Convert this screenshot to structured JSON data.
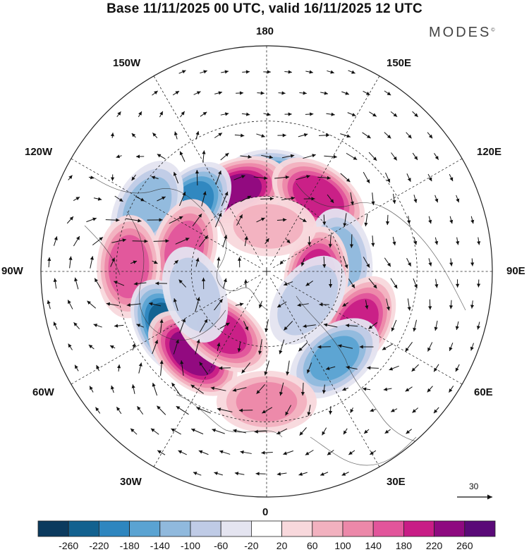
{
  "title": "Base 11/11/2025 00 UTC, valid 16/11/2025 12 UTC",
  "brand": {
    "name": "MODES",
    "mark": "©"
  },
  "longitude_labels": {
    "top": "180",
    "bottom": "0",
    "left": "90W",
    "right": "90E",
    "upper_left_1": "150W",
    "upper_left_2": "120W",
    "upper_right_1": "150E",
    "upper_right_2": "120E",
    "lower_left_1": "60W",
    "lower_left_2": "30W",
    "lower_right_1": "60E",
    "lower_right_2": "30E"
  },
  "reference_vector": {
    "label": "30"
  },
  "colorbar": {
    "colors": [
      "#0b3a5e",
      "#12618f",
      "#2e86bf",
      "#5aa3d2",
      "#90b9dd",
      "#bfcbe6",
      "#e4e4f0",
      "#ffffff",
      "#f8d8dc",
      "#f2b1bf",
      "#ec88a9",
      "#e2559b",
      "#c81d86",
      "#8e0a80",
      "#5a0a78"
    ],
    "labels": [
      "-260",
      "-220",
      "-180",
      "-140",
      "-100",
      "-60",
      "-20",
      "20",
      "60",
      "100",
      "140",
      "180",
      "220",
      "260"
    ]
  },
  "anomalies": [
    {
      "lon": 175,
      "colat": 36,
      "v": -190
    },
    {
      "lon": -160,
      "colat": 34,
      "v": 230
    },
    {
      "lon": 145,
      "colat": 36,
      "v": 210
    },
    {
      "lon": -130,
      "colat": 40,
      "v": -220
    },
    {
      "lon": -118,
      "colat": 54,
      "v": -130
    },
    {
      "lon": -105,
      "colat": 34,
      "v": 160
    },
    {
      "lon": -92,
      "colat": 55,
      "v": 180
    },
    {
      "lon": -60,
      "colat": 45,
      "v": -250
    },
    {
      "lon": -42,
      "colat": 44,
      "v": 250
    },
    {
      "lon": -36,
      "colat": 30,
      "v": 200
    },
    {
      "lon": 100,
      "colat": 30,
      "v": -120
    },
    {
      "lon": 82,
      "colat": 20,
      "v": 220
    },
    {
      "lon": 60,
      "colat": 42,
      "v": 200
    },
    {
      "lon": 38,
      "colat": 44,
      "v": -150
    },
    {
      "lon": 0,
      "colat": 52,
      "v": 110
    },
    {
      "lon": 55,
      "colat": 20,
      "v": -100
    },
    {
      "lon": 178,
      "colat": 18,
      "v": 70
    },
    {
      "lon": -72,
      "colat": 30,
      "v": -90
    }
  ]
}
